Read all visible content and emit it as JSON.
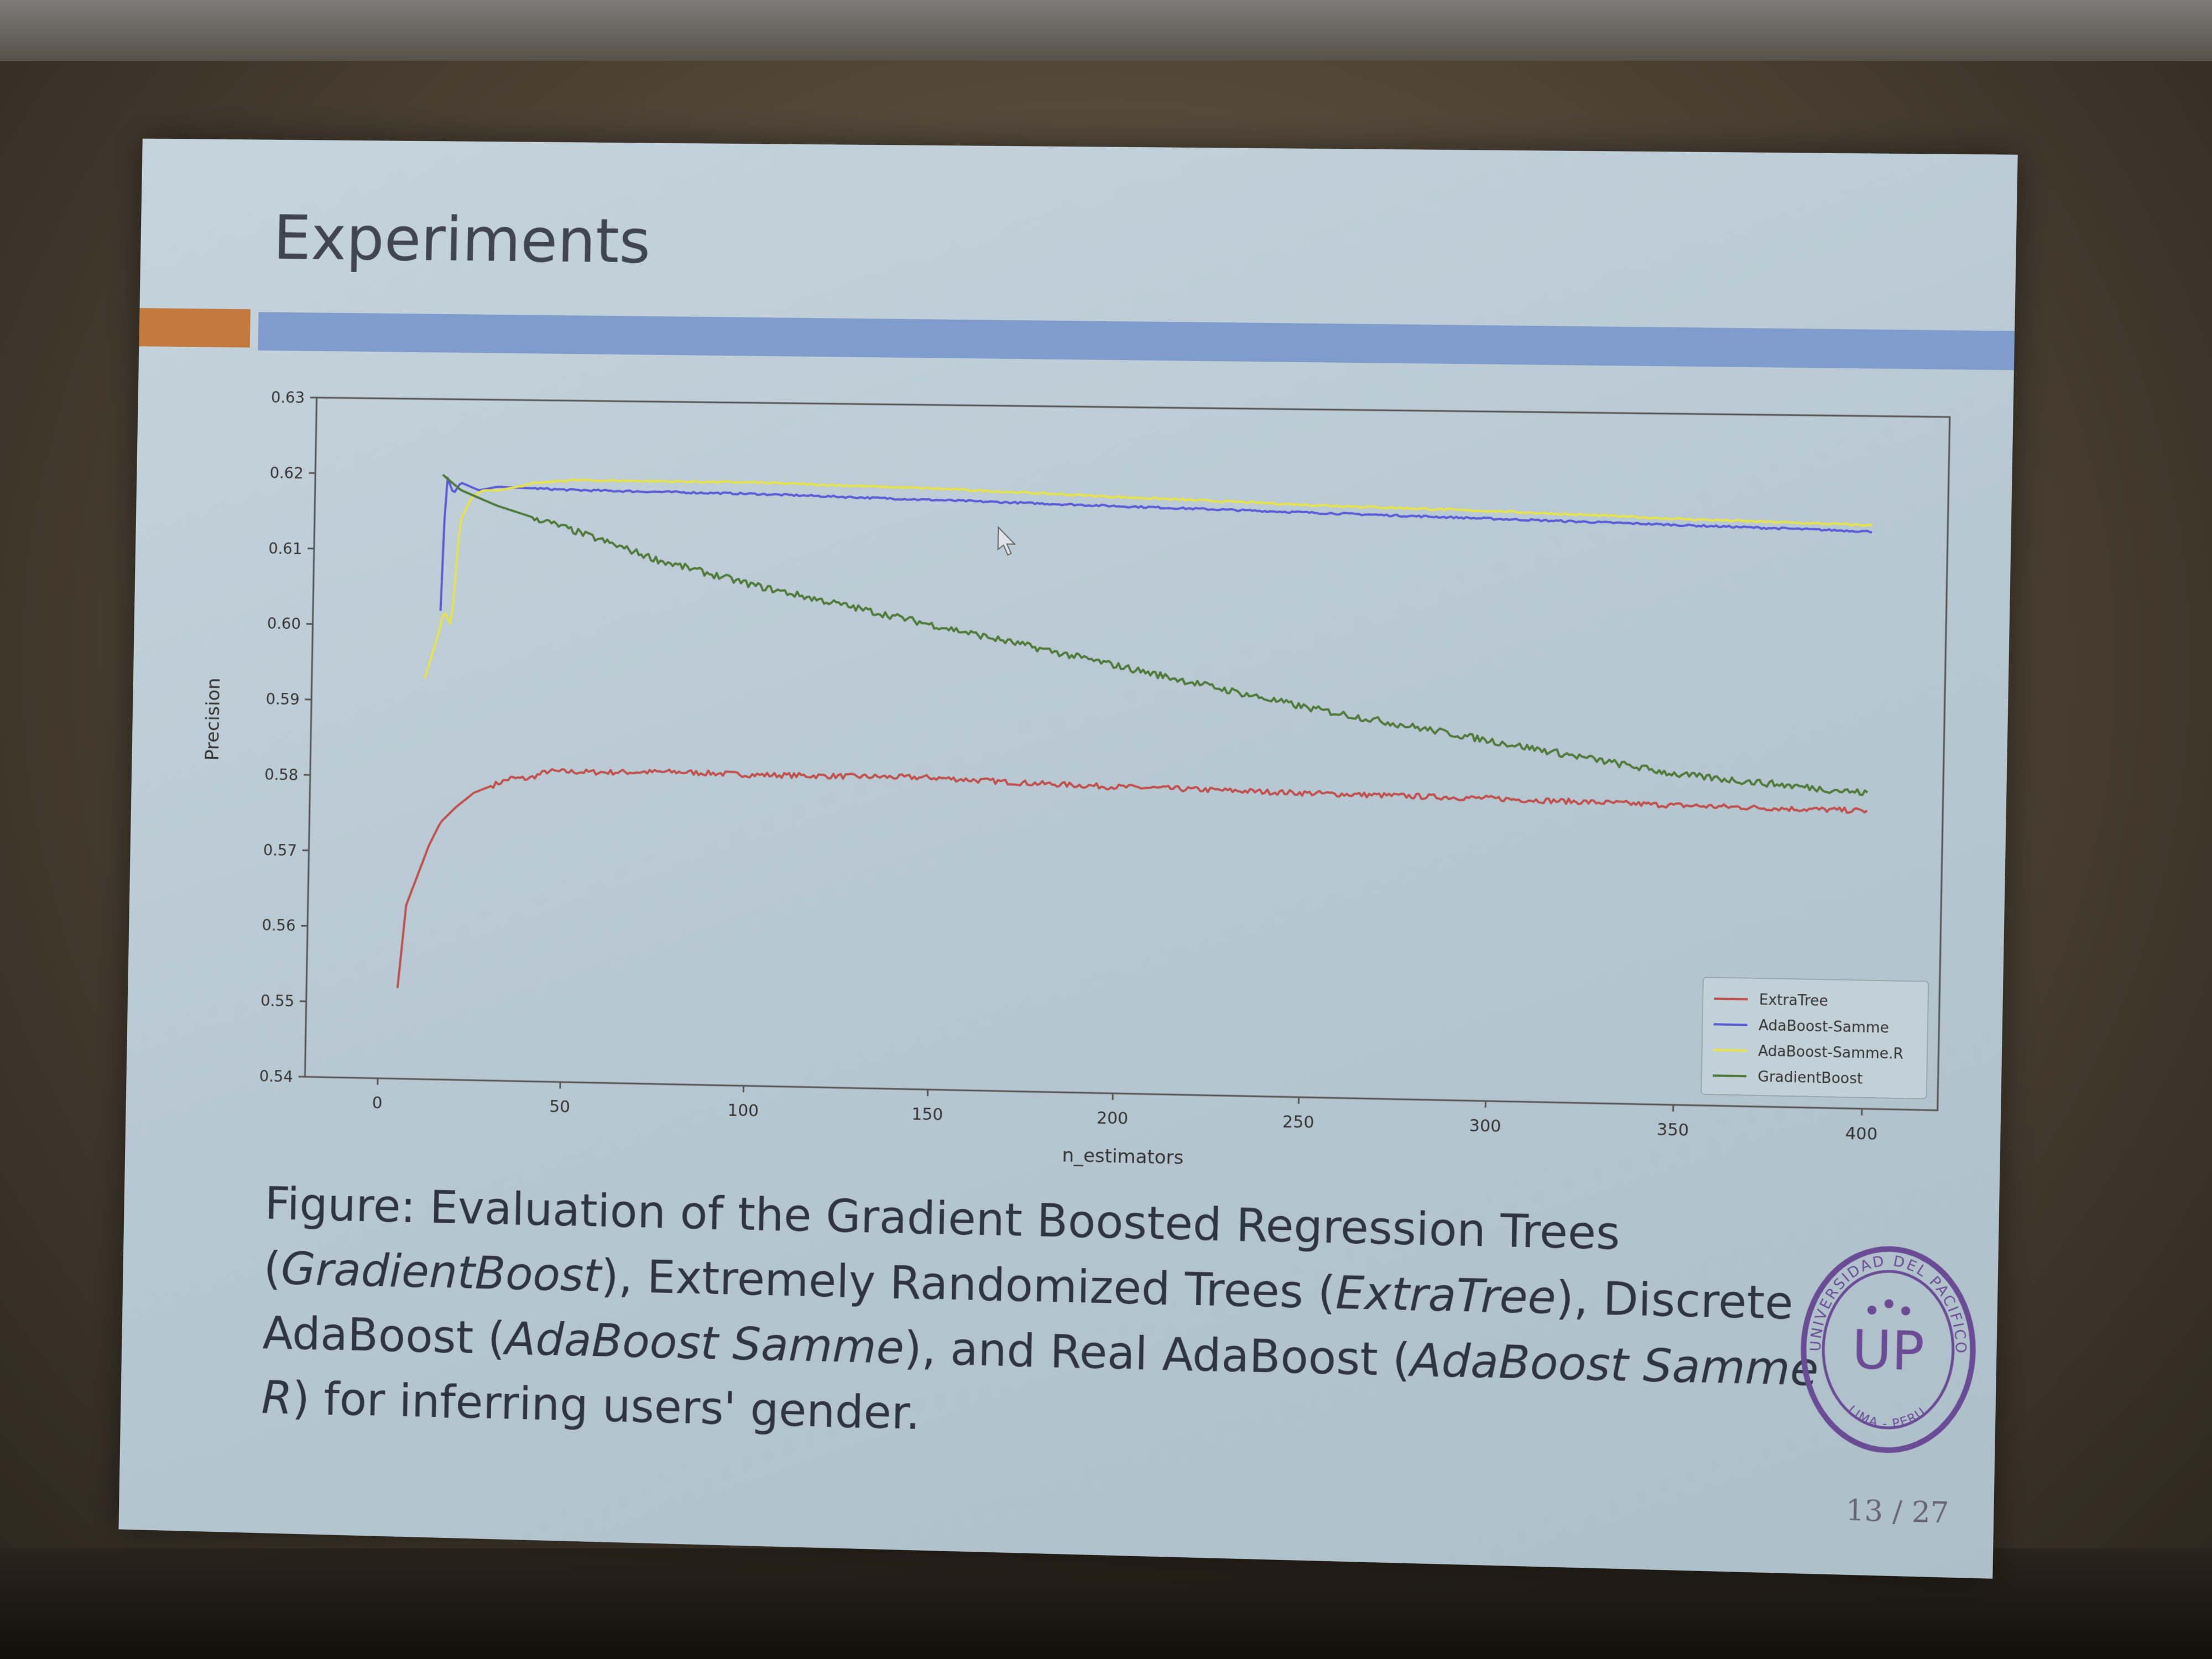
{
  "slide": {
    "title": "Experiments",
    "page_number": "13 / 27",
    "caption": {
      "p1": "Figure: Evaluation of the Gradient Boosted Regression Trees (",
      "i1": "GradientBoost",
      "p2": "), Extremely Randomized Trees (",
      "i2": "ExtraTree",
      "p3": "), Discrete AdaBoost (",
      "i3": "AdaBoost Samme",
      "p4": "), and Real AdaBoost (",
      "i4": "AdaBoost Samme R",
      "p5": ") for inferring users' gender."
    },
    "seal": {
      "text_top": "UNIVERSIDAD DEL PACIFICO",
      "text_bottom": "LIMA - PERU",
      "monogram": "UP"
    },
    "colors": {
      "orange_bar": "#c47a3e",
      "blue_bar": "#7f9ccc",
      "seal": "#6a4c95"
    }
  },
  "chart_data": {
    "type": "line",
    "xlabel": "n_estimators",
    "ylabel": "Precision",
    "xlim": [
      -20,
      420
    ],
    "ylim": [
      0.54,
      0.63
    ],
    "x_ticks": [
      0,
      50,
      100,
      150,
      200,
      250,
      300,
      350,
      400
    ],
    "x_tick_labels": [
      "0",
      "50",
      "100",
      "150",
      "200",
      "250",
      "300",
      "350",
      "400"
    ],
    "y_ticks": [
      0.54,
      0.55,
      0.56,
      0.57,
      0.58,
      0.59,
      0.6,
      0.61,
      0.62,
      0.63
    ],
    "y_tick_labels": [
      "0.54",
      "0.55",
      "0.56",
      "0.57",
      "0.58",
      "0.59",
      "0.60",
      "0.61",
      "0.62",
      "0.63"
    ],
    "grid": false,
    "legend_position": "lower-right",
    "series": [
      {
        "name": "ExtraTree",
        "color": "#c0504d",
        "x": [
          5,
          7,
          10,
          13,
          16,
          20,
          25,
          30,
          35,
          40,
          45,
          50,
          60,
          80,
          100,
          120,
          150,
          175,
          200,
          250,
          300,
          350,
          400
        ],
        "y": [
          0.552,
          0.563,
          0.567,
          0.571,
          0.574,
          0.576,
          0.578,
          0.579,
          0.58,
          0.58,
          0.581,
          0.581,
          0.581,
          0.5812,
          0.581,
          0.581,
          0.581,
          0.5805,
          0.5802,
          0.5798,
          0.5795,
          0.579,
          0.5787
        ]
      },
      {
        "name": "AdaBoost-Samme",
        "color": "#5b5bd6",
        "x": [
          15,
          16,
          18,
          20,
          25,
          30,
          50,
          100,
          150,
          200,
          250,
          300,
          350,
          400
        ],
        "y": [
          0.602,
          0.62,
          0.6175,
          0.619,
          0.618,
          0.6185,
          0.6182,
          0.618,
          0.6175,
          0.617,
          0.6165,
          0.616,
          0.6155,
          0.615
        ]
      },
      {
        "name": "AdaBoost-Samme.R",
        "color": "#e6e34a",
        "x": [
          11,
          14,
          16,
          18,
          20,
          23,
          26,
          30,
          40,
          50,
          100,
          150,
          200,
          250,
          300,
          350,
          400
        ],
        "y": [
          0.593,
          0.598,
          0.602,
          0.6,
          0.614,
          0.617,
          0.618,
          0.618,
          0.619,
          0.6195,
          0.6195,
          0.619,
          0.6182,
          0.6175,
          0.617,
          0.6163,
          0.6158
        ]
      },
      {
        "name": "GradientBoost",
        "color": "#4f7a3a",
        "x": [
          15,
          20,
          30,
          50,
          75,
          100,
          125,
          150,
          175,
          200,
          225,
          250,
          275,
          300,
          325,
          350,
          375,
          400
        ],
        "y": [
          0.62,
          0.618,
          0.616,
          0.613,
          0.609,
          0.606,
          0.6035,
          0.601,
          0.5985,
          0.596,
          0.5935,
          0.591,
          0.589,
          0.587,
          0.585,
          0.583,
          0.582,
          0.581
        ]
      }
    ]
  }
}
